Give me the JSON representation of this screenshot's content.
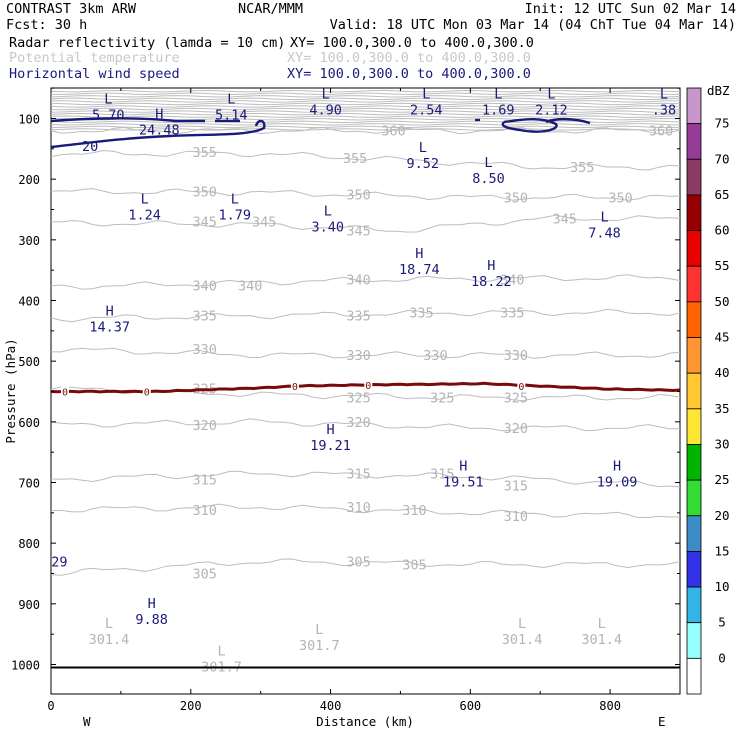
{
  "header": {
    "left_line1": "CONTRAST  3km ARW",
    "center_line1": "NCAR/MMM",
    "right_line1": "Init: 12 UTC Sun 02 Mar 14",
    "left_line2": "Fcst:    30 h",
    "right_line2": "Valid: 18 UTC Mon 03 Mar 14 (04 ChT Tue 04 Mar 14)",
    "fields": [
      {
        "name": "Radar reflectivity (lamda = 10 cm)",
        "xy": "XY= 100.0,300.0 to 400.0,300.0",
        "color": "#000000"
      },
      {
        "name": "Potential temperature",
        "xy": "XY= 100.0,300.0 to 400.0,300.0",
        "color": "#c8c8c8"
      },
      {
        "name": "Horizontal wind speed",
        "xy": "XY= 100.0,300.0 to 400.0,300.0",
        "color": "#1a1a7a"
      }
    ]
  },
  "chart_data": {
    "type": "contour",
    "xlabel": "Distance (km)",
    "ylabel": "Pressure (hPa)",
    "x_ticks": [
      "0",
      "200",
      "400",
      "600",
      "800"
    ],
    "x_tick_values": [
      0,
      200,
      400,
      600,
      800
    ],
    "xlim": [
      0,
      900
    ],
    "y_ticks": [
      "100",
      "200",
      "300",
      "400",
      "500",
      "600",
      "700",
      "800",
      "900",
      "1000"
    ],
    "y_tick_values": [
      100,
      200,
      300,
      400,
      500,
      600,
      700,
      800,
      900,
      1000
    ],
    "ylim": [
      1050,
      50
    ],
    "x_end_labels": {
      "left": "W",
      "right": "E"
    },
    "colorbar": {
      "unit": "dBZ",
      "levels": [
        "75",
        "70",
        "65",
        "60",
        "55",
        "50",
        "45",
        "40",
        "35",
        "30",
        "25",
        "20",
        "15",
        "10",
        "5",
        "0"
      ],
      "colors": [
        "#c896c8",
        "#963c96",
        "#8c3c64",
        "#960000",
        "#e60000",
        "#ff3232",
        "#ff6400",
        "#ff9632",
        "#ffc832",
        "#ffe632",
        "#00b400",
        "#32dc32",
        "#3c8cc8",
        "#3232e6",
        "#32b4e6",
        "#96ffff",
        "#ffffff"
      ]
    },
    "potential_temperature_labels": [
      {
        "text": "360",
        "x": 490,
        "p": 120
      },
      {
        "text": "360",
        "x": 873,
        "p": 120
      },
      {
        "text": "355",
        "x": 220,
        "p": 155
      },
      {
        "text": "355",
        "x": 435,
        "p": 165
      },
      {
        "text": "355",
        "x": 760,
        "p": 180
      },
      {
        "text": "350",
        "x": 220,
        "p": 220
      },
      {
        "text": "350",
        "x": 440,
        "p": 225
      },
      {
        "text": "350",
        "x": 665,
        "p": 230
      },
      {
        "text": "350",
        "x": 815,
        "p": 230
      },
      {
        "text": "345",
        "x": 220,
        "p": 270
      },
      {
        "text": "345",
        "x": 305,
        "p": 270
      },
      {
        "text": "345",
        "x": 440,
        "p": 285
      },
      {
        "text": "345",
        "x": 735,
        "p": 265
      },
      {
        "text": "340",
        "x": 220,
        "p": 375
      },
      {
        "text": "340",
        "x": 285,
        "p": 375
      },
      {
        "text": "340",
        "x": 440,
        "p": 365
      },
      {
        "text": "340",
        "x": 660,
        "p": 365
      },
      {
        "text": "335",
        "x": 220,
        "p": 425
      },
      {
        "text": "335",
        "x": 440,
        "p": 425
      },
      {
        "text": "335",
        "x": 530,
        "p": 420
      },
      {
        "text": "335",
        "x": 660,
        "p": 420
      },
      {
        "text": "330",
        "x": 220,
        "p": 480
      },
      {
        "text": "330",
        "x": 440,
        "p": 490
      },
      {
        "text": "330",
        "x": 550,
        "p": 490
      },
      {
        "text": "330",
        "x": 665,
        "p": 490
      },
      {
        "text": "325",
        "x": 220,
        "p": 545
      },
      {
        "text": "325",
        "x": 440,
        "p": 560
      },
      {
        "text": "325",
        "x": 560,
        "p": 560
      },
      {
        "text": "325",
        "x": 665,
        "p": 560
      },
      {
        "text": "320",
        "x": 220,
        "p": 605
      },
      {
        "text": "320",
        "x": 440,
        "p": 600
      },
      {
        "text": "320",
        "x": 665,
        "p": 610
      },
      {
        "text": "315",
        "x": 220,
        "p": 695
      },
      {
        "text": "315",
        "x": 440,
        "p": 685
      },
      {
        "text": "315",
        "x": 560,
        "p": 685
      },
      {
        "text": "315",
        "x": 665,
        "p": 705
      },
      {
        "text": "310",
        "x": 220,
        "p": 745
      },
      {
        "text": "310",
        "x": 440,
        "p": 740
      },
      {
        "text": "310",
        "x": 520,
        "p": 745
      },
      {
        "text": "310",
        "x": 665,
        "p": 755
      },
      {
        "text": "305",
        "x": 220,
        "p": 850
      },
      {
        "text": "305",
        "x": 440,
        "p": 830
      },
      {
        "text": "305",
        "x": 520,
        "p": 835
      }
    ],
    "highs_lows": [
      {
        "kind": "L",
        "value": "5.70",
        "x": 82,
        "p": 80,
        "color": "blue"
      },
      {
        "kind": "H",
        "value": "24.48",
        "x": 155,
        "p": 105,
        "color": "blue"
      },
      {
        "kind": "L",
        "value": "5.14",
        "x": 258,
        "p": 80,
        "color": "blue"
      },
      {
        "kind": "L",
        "value": "4.90",
        "x": 393,
        "p": 72,
        "color": "blue"
      },
      {
        "kind": "L",
        "value": "2.54",
        "x": 537,
        "p": 72,
        "color": "blue"
      },
      {
        "kind": "L",
        "value": "1.69",
        "x": 640,
        "p": 72,
        "color": "blue"
      },
      {
        "kind": "L",
        "value": "2.12",
        "x": 716,
        "p": 72,
        "color": "blue"
      },
      {
        "kind": "L",
        "value": ".38",
        "x": 877,
        "p": 72,
        "color": "blue"
      },
      {
        "kind": "L",
        "value": "9.52",
        "x": 532,
        "p": 160,
        "color": "blue"
      },
      {
        "kind": "L",
        "value": "8.50",
        "x": 626,
        "p": 185,
        "color": "blue"
      },
      {
        "kind": "L",
        "value": "1.24",
        "x": 134,
        "p": 245,
        "color": "blue"
      },
      {
        "kind": "L",
        "value": "1.79",
        "x": 263,
        "p": 245,
        "color": "blue"
      },
      {
        "kind": "L",
        "value": "3.40",
        "x": 396,
        "p": 265,
        "color": "blue"
      },
      {
        "kind": "L",
        "value": "7.48",
        "x": 792,
        "p": 275,
        "color": "blue"
      },
      {
        "kind": "H",
        "value": "18.74",
        "x": 527,
        "p": 335,
        "color": "blue"
      },
      {
        "kind": "H",
        "value": "18.22",
        "x": 630,
        "p": 355,
        "color": "blue"
      },
      {
        "kind": "H",
        "value": "14.37",
        "x": 84,
        "p": 430,
        "color": "blue"
      },
      {
        "kind": "H",
        "value": "19.21",
        "x": 400,
        "p": 625,
        "color": "blue"
      },
      {
        "kind": "H",
        "value": "19.51",
        "x": 590,
        "p": 685,
        "color": "blue"
      },
      {
        "kind": "H",
        "value": "19.09",
        "x": 810,
        "p": 685,
        "color": "blue"
      },
      {
        "kind": "",
        "value": "29",
        "x": 12,
        "p": 830,
        "color": "blue"
      },
      {
        "kind": "H",
        "value": "9.88",
        "x": 144,
        "p": 912,
        "color": "blue"
      },
      {
        "kind": "L",
        "value": "301.4",
        "x": 83,
        "p": 945,
        "color": "grey"
      },
      {
        "kind": "L",
        "value": "301.7",
        "x": 384,
        "p": 955,
        "color": "grey"
      },
      {
        "kind": "L",
        "value": "301.7",
        "x": 244,
        "p": 990,
        "color": "grey"
      },
      {
        "kind": "L",
        "value": "301.4",
        "x": 674,
        "p": 945,
        "color": "grey"
      },
      {
        "kind": "L",
        "value": "301.4",
        "x": 788,
        "p": 945,
        "color": "grey"
      }
    ],
    "wind_contour_labels": [
      {
        "text": "20",
        "x": 56,
        "p": 145
      }
    ],
    "reflectivity_labels": [
      {
        "text": "0",
        "x": 20,
        "p": 550
      },
      {
        "text": "0",
        "x": 137,
        "p": 550
      },
      {
        "text": "0",
        "x": 349,
        "p": 541
      },
      {
        "text": "0",
        "x": 454,
        "p": 539
      },
      {
        "text": "0",
        "x": 673,
        "p": 541
      }
    ],
    "surface_pressure": 1005
  }
}
